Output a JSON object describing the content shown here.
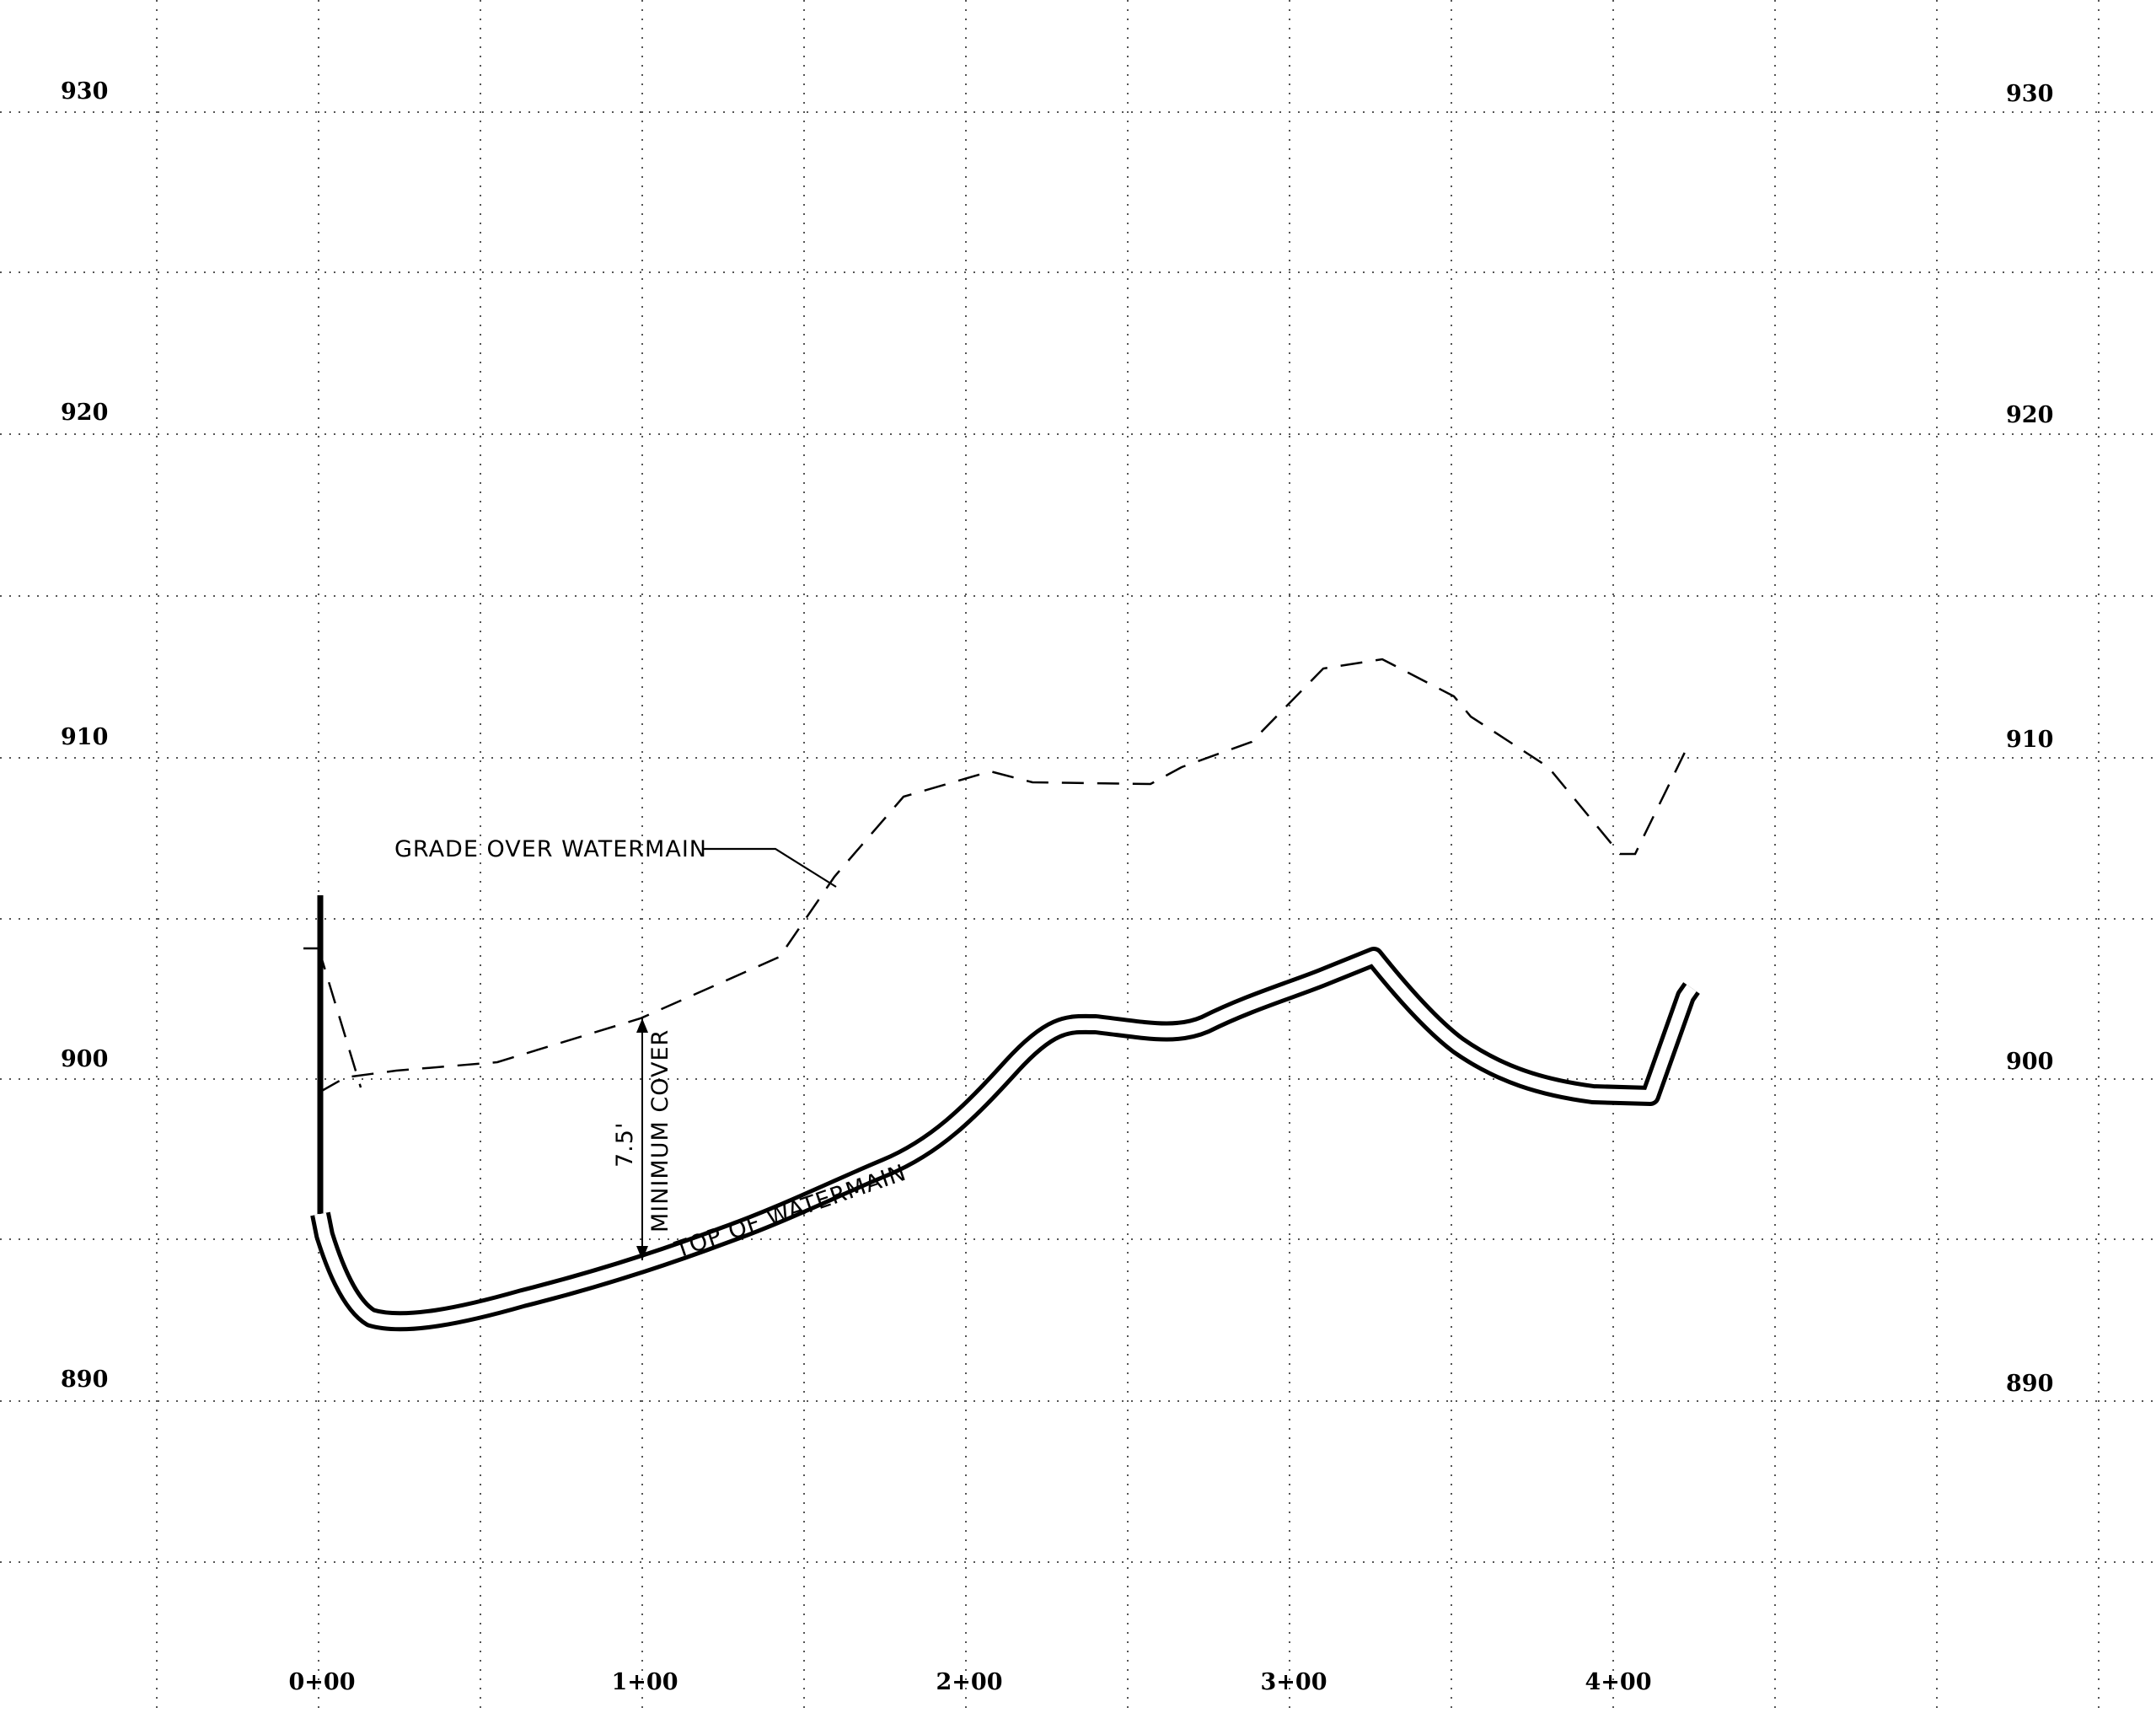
{
  "elevation_labels": {
    "e930": "930",
    "e920": "920",
    "e910": "910",
    "e900": "900",
    "e890": "890"
  },
  "station_labels": {
    "s0": "0+00",
    "s1": "1+00",
    "s2": "2+00",
    "s3": "3+00",
    "s4": "4+00"
  },
  "annotations": {
    "grade": "GRADE OVER WATERMAIN",
    "top": "TOP OF WATERMAIN",
    "cover_value": "7.5'",
    "cover_text": "MINIMUM COVER"
  }
}
